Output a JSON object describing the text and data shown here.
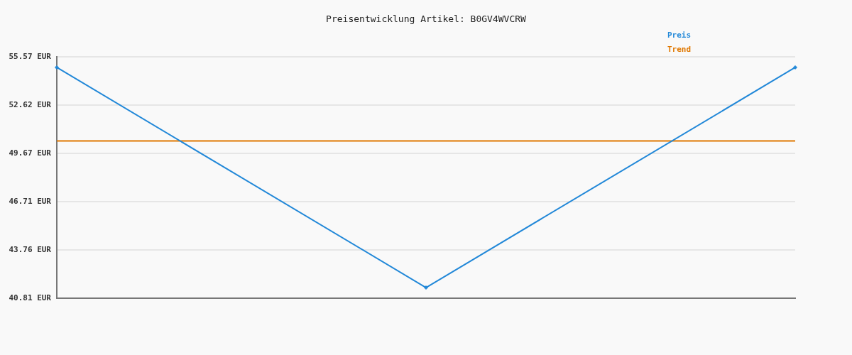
{
  "chart_data": {
    "type": "line",
    "title": "Preisentwicklung Artikel: B0GV4WVCRW",
    "categories": [
      null,
      null,
      null
    ],
    "series": [
      {
        "name": "Preis",
        "color": "#2288d8",
        "values": [
          54.92,
          41.46,
          54.92
        ],
        "marker": "diamond"
      },
      {
        "name": "Trend",
        "color": "#e07800",
        "values": [
          50.43,
          50.43,
          50.43
        ]
      }
    ],
    "ylim": [
      40.81,
      55.57
    ],
    "yticks": [
      {
        "value": 40.81,
        "label": "40.81 EUR"
      },
      {
        "value": 43.76,
        "label": "43.76 EUR"
      },
      {
        "value": 46.71,
        "label": "46.71 EUR"
      },
      {
        "value": 49.67,
        "label": "49.67 EUR"
      },
      {
        "value": 52.62,
        "label": "52.62 EUR"
      },
      {
        "value": 55.57,
        "label": "55.57 EUR"
      }
    ],
    "grid": "y",
    "legend": "top right",
    "tick_labels": "y"
  }
}
